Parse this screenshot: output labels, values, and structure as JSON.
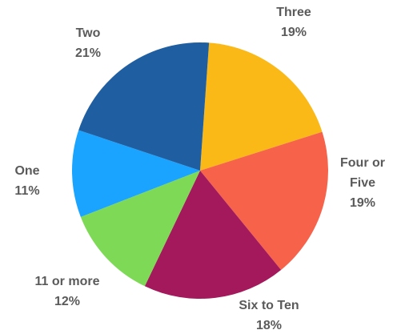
{
  "chart_data": {
    "type": "pie",
    "title": "",
    "start_angle_deg": 4,
    "slices": [
      {
        "label_lines": [
          "Three"
        ],
        "percent_text": "19%",
        "value": 19,
        "color": "#fbb917"
      },
      {
        "label_lines": [
          "Four or",
          "Five"
        ],
        "percent_text": "19%",
        "value": 19,
        "color": "#f7624b"
      },
      {
        "label_lines": [
          "Six to Ten"
        ],
        "percent_text": "18%",
        "value": 18,
        "color": "#a3195b"
      },
      {
        "label_lines": [
          "11 or more"
        ],
        "percent_text": "12%",
        "value": 12,
        "color": "#7ed957"
      },
      {
        "label_lines": [
          "One"
        ],
        "percent_text": "11%",
        "value": 11,
        "color": "#1aa4ff"
      },
      {
        "label_lines": [
          "Two"
        ],
        "percent_text": "21%",
        "value": 21,
        "color": "#1f5fa1"
      }
    ]
  }
}
